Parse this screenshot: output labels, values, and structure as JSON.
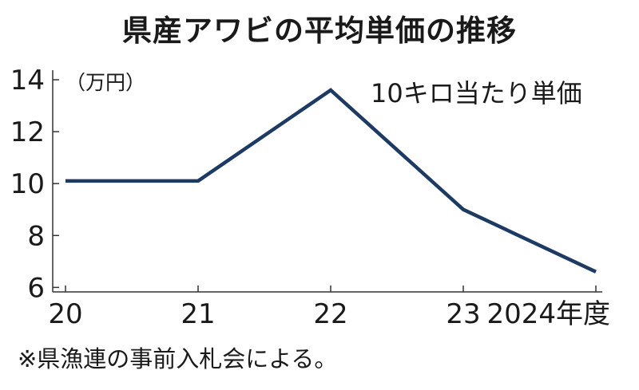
{
  "chart_data": {
    "type": "line",
    "title": "県産アワビの平均単価の推移",
    "unit_label": "（万円）",
    "annotation": "10キロ当たり単価",
    "source_note": "※県漁連の事前入札会による。",
    "x": [
      "20",
      "21",
      "22",
      "23",
      "2024年度"
    ],
    "series": [
      {
        "values": [
          10.1,
          10.1,
          13.6,
          9.0,
          6.6
        ]
      }
    ],
    "yticks": [
      6,
      8,
      10,
      12,
      14
    ],
    "ylim": [
      5.95,
      14
    ],
    "grid": false,
    "line_color": "#1d3a63"
  }
}
